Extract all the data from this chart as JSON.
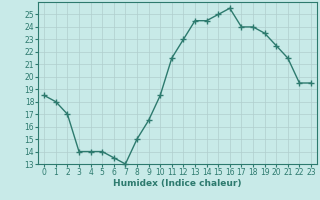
{
  "x": [
    0,
    1,
    2,
    3,
    4,
    5,
    6,
    7,
    8,
    9,
    10,
    11,
    12,
    13,
    14,
    15,
    16,
    17,
    18,
    19,
    20,
    21,
    22,
    23
  ],
  "y": [
    18.5,
    18.0,
    17.0,
    14.0,
    14.0,
    14.0,
    13.5,
    13.0,
    15.0,
    16.5,
    18.5,
    21.5,
    23.0,
    24.5,
    24.5,
    25.0,
    25.5,
    24.0,
    24.0,
    23.5,
    22.5,
    21.5,
    19.5,
    19.5
  ],
  "line_color": "#2d7a6e",
  "marker": "+",
  "marker_size": 4,
  "bg_color": "#c8eae8",
  "grid_color": "#b0cece",
  "axis_color": "#2d7a6e",
  "xlabel": "Humidex (Indice chaleur)",
  "xlim": [
    -0.5,
    23.5
  ],
  "ylim": [
    13,
    26
  ],
  "yticks": [
    13,
    14,
    15,
    16,
    17,
    18,
    19,
    20,
    21,
    22,
    23,
    24,
    25
  ],
  "xticks": [
    0,
    1,
    2,
    3,
    4,
    5,
    6,
    7,
    8,
    9,
    10,
    11,
    12,
    13,
    14,
    15,
    16,
    17,
    18,
    19,
    20,
    21,
    22,
    23
  ],
  "xlabel_fontsize": 6.5,
  "tick_fontsize": 5.5,
  "linewidth": 1.0
}
